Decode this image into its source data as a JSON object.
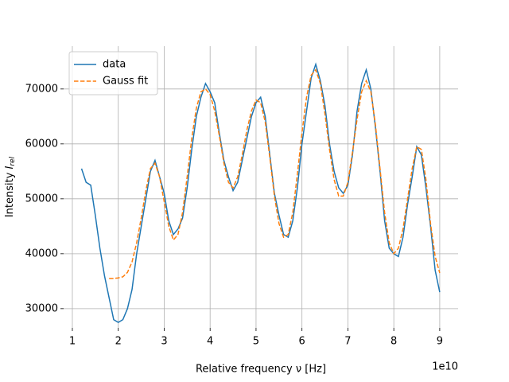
{
  "chart_data": {
    "type": "line",
    "xlabel": "Relative frequency  ν [Hz]",
    "ylabel": "Intensity  ",
    "ylabel_symbol": "I",
    "ylabel_subscript": "rel",
    "x_offset_text": "1e10",
    "xlim": [
      0.81,
      9.4
    ],
    "ylim": [
      26500,
      77800
    ],
    "xticks": [
      1,
      2,
      3,
      4,
      5,
      6,
      7,
      8,
      9
    ],
    "yticks": [
      30000,
      40000,
      50000,
      60000,
      70000
    ],
    "grid": true,
    "legend": "upper left",
    "series": [
      {
        "name": "data",
        "color": "#1f77b4",
        "dashed": false,
        "x": [
          1.2,
          1.3,
          1.4,
          1.5,
          1.6,
          1.7,
          1.8,
          1.9,
          2.0,
          2.1,
          2.2,
          2.3,
          2.4,
          2.5,
          2.6,
          2.7,
          2.8,
          2.9,
          3.0,
          3.1,
          3.2,
          3.3,
          3.4,
          3.5,
          3.6,
          3.7,
          3.8,
          3.9,
          4.0,
          4.1,
          4.2,
          4.3,
          4.4,
          4.5,
          4.6,
          4.7,
          4.8,
          4.9,
          5.0,
          5.1,
          5.2,
          5.3,
          5.4,
          5.5,
          5.6,
          5.7,
          5.8,
          5.9,
          6.0,
          6.1,
          6.2,
          6.3,
          6.4,
          6.5,
          6.6,
          6.7,
          6.8,
          6.9,
          7.0,
          7.1,
          7.2,
          7.3,
          7.4,
          7.5,
          7.6,
          7.7,
          7.8,
          7.9,
          8.0,
          8.1,
          8.2,
          8.3,
          8.4,
          8.5,
          8.6,
          8.7,
          8.8,
          8.9,
          9.0
        ],
        "values": [
          55500,
          53000,
          52500,
          47000,
          41000,
          36000,
          32000,
          28000,
          27500,
          28000,
          30000,
          33500,
          40000,
          45000,
          50000,
          55000,
          57000,
          54000,
          51000,
          46000,
          43500,
          44500,
          46500,
          52000,
          59000,
          65000,
          68500,
          71000,
          69500,
          67500,
          62000,
          57000,
          54000,
          51500,
          53000,
          57000,
          61000,
          65000,
          67500,
          68500,
          65000,
          58000,
          51000,
          47000,
          43500,
          43000,
          46000,
          52000,
          60000,
          66000,
          72000,
          74500,
          71500,
          67000,
          60000,
          55000,
          52000,
          51000,
          52500,
          58000,
          66000,
          71000,
          73500,
          70000,
          63000,
          55000,
          46000,
          41000,
          40000,
          39500,
          43000,
          49000,
          54000,
          59500,
          58000,
          52000,
          45000,
          37000,
          33000
        ]
      },
      {
        "name": "Gauss fit",
        "color": "#ff7f0e",
        "dashed": true,
        "x": [
          1.8,
          1.9,
          2.0,
          2.1,
          2.2,
          2.3,
          2.4,
          2.5,
          2.6,
          2.7,
          2.8,
          2.9,
          3.0,
          3.1,
          3.2,
          3.3,
          3.4,
          3.5,
          3.6,
          3.7,
          3.8,
          3.9,
          4.0,
          4.1,
          4.2,
          4.3,
          4.4,
          4.5,
          4.6,
          4.7,
          4.8,
          4.9,
          5.0,
          5.1,
          5.2,
          5.3,
          5.4,
          5.5,
          5.6,
          5.7,
          5.8,
          5.9,
          6.0,
          6.1,
          6.2,
          6.3,
          6.4,
          6.5,
          6.6,
          6.7,
          6.8,
          6.9,
          7.0,
          7.1,
          7.2,
          7.3,
          7.4,
          7.5,
          7.6,
          7.7,
          7.8,
          7.9,
          8.0,
          8.1,
          8.2,
          8.3,
          8.4,
          8.5,
          8.6,
          8.7,
          8.8,
          8.9,
          9.0
        ],
        "values": [
          35500,
          35500,
          35600,
          35800,
          36600,
          38500,
          42000,
          46500,
          51500,
          55500,
          56500,
          54000,
          49500,
          45000,
          42500,
          43500,
          47500,
          54000,
          61000,
          66500,
          69500,
          70000,
          69000,
          66000,
          61500,
          56500,
          53000,
          52000,
          54000,
          58000,
          62500,
          66000,
          68000,
          67500,
          64000,
          57500,
          50500,
          45500,
          43000,
          43500,
          47500,
          54500,
          62000,
          68500,
          72500,
          73500,
          71000,
          65500,
          59000,
          53500,
          50500,
          50500,
          53000,
          58500,
          64500,
          69500,
          71500,
          69500,
          63500,
          55500,
          47500,
          42000,
          40000,
          41000,
          44500,
          50000,
          55500,
          59500,
          59000,
          53500,
          45500,
          39500,
          36500
        ]
      }
    ]
  }
}
